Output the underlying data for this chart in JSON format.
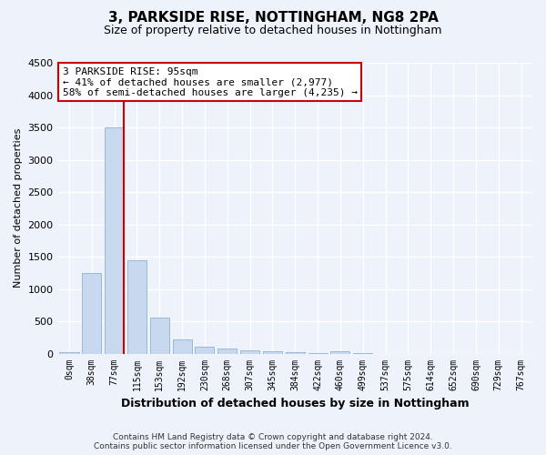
{
  "title_line1": "3, PARKSIDE RISE, NOTTINGHAM, NG8 2PA",
  "title_line2": "Size of property relative to detached houses in Nottingham",
  "xlabel": "Distribution of detached houses by size in Nottingham",
  "ylabel": "Number of detached properties",
  "bar_labels": [
    "0sqm",
    "38sqm",
    "77sqm",
    "115sqm",
    "153sqm",
    "192sqm",
    "230sqm",
    "268sqm",
    "307sqm",
    "345sqm",
    "384sqm",
    "422sqm",
    "460sqm",
    "499sqm",
    "537sqm",
    "575sqm",
    "614sqm",
    "652sqm",
    "690sqm",
    "729sqm",
    "767sqm"
  ],
  "bar_values": [
    18,
    1250,
    3500,
    1450,
    550,
    220,
    110,
    75,
    50,
    30,
    25,
    10,
    30,
    5,
    0,
    0,
    0,
    0,
    0,
    0,
    0
  ],
  "bar_color": "#c8d8ef",
  "bar_edgecolor": "#9ab8d8",
  "ylim": [
    0,
    4500
  ],
  "yticks": [
    0,
    500,
    1000,
    1500,
    2000,
    2500,
    3000,
    3500,
    4000,
    4500
  ],
  "red_line_color": "#cc0000",
  "annotation_text": "3 PARKSIDE RISE: 95sqm\n← 41% of detached houses are smaller (2,977)\n58% of semi-detached houses are larger (4,235) →",
  "annotation_box_facecolor": "#ffffff",
  "annotation_box_edgecolor": "#cc0000",
  "background_color": "#eef3fb",
  "grid_color": "#ffffff",
  "footer_line1": "Contains HM Land Registry data © Crown copyright and database right 2024.",
  "footer_line2": "Contains public sector information licensed under the Open Government Licence v3.0."
}
